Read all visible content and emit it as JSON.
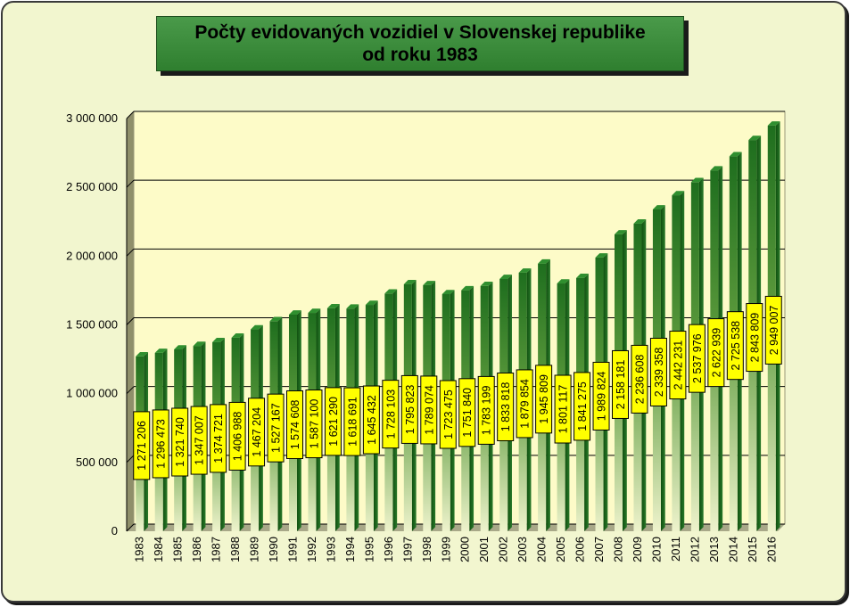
{
  "chart_data": {
    "type": "bar",
    "title_lines": [
      "Počty evidovaných vozidiel v Slovenskej republike",
      "od roku 1983"
    ],
    "categories": [
      "1983",
      "1984",
      "1985",
      "1986",
      "1987",
      "1988",
      "1989",
      "1990",
      "1991",
      "1992",
      "1993",
      "1994",
      "1995",
      "1996",
      "1997",
      "1998",
      "1999",
      "2000",
      "2001",
      "2002",
      "2003",
      "2004",
      "2005",
      "2006",
      "2007",
      "2008",
      "2009",
      "2010",
      "2011",
      "2012",
      "2013",
      "2014",
      "2015",
      "2016"
    ],
    "values": [
      1271206,
      1296473,
      1321740,
      1347007,
      1374721,
      1406988,
      1467204,
      1527167,
      1574608,
      1587100,
      1621290,
      1618691,
      1645432,
      1728103,
      1795823,
      1789074,
      1723475,
      1751840,
      1783199,
      1833818,
      1879854,
      1945809,
      1801117,
      1841275,
      1989824,
      2158181,
      2236608,
      2339358,
      2442231,
      2537976,
      2622939,
      2725538,
      2843809,
      2949007
    ],
    "value_labels": [
      "1 271 206",
      "1 296 473",
      "1 321 740",
      "1 347 007",
      "1 374 721",
      "1 406 988",
      "1 467 204",
      "1 527 167",
      "1 574 608",
      "1 587 100",
      "1 621 290",
      "1 618 691",
      "1 645 432",
      "1 728 103",
      "1 795 823",
      "1 789 074",
      "1 723 475",
      "1 751 840",
      "1 783 199",
      "1 833 818",
      "1 879 854",
      "1 945 809",
      "1 801 117",
      "1 841 275",
      "1 989 824",
      "2 158 181",
      "2 236 608",
      "2 339 358",
      "2 442 231",
      "2 537 976",
      "2 622 939",
      "2 725 538",
      "2 843 809",
      "2 949 007"
    ],
    "y_ticks": [
      0,
      500000,
      1000000,
      1500000,
      2000000,
      2500000,
      3000000
    ],
    "y_tick_labels": [
      "0",
      "500 000",
      "1 000 000",
      "1 500 000",
      "2 000 000",
      "2 500 000",
      "3 000 000"
    ],
    "ylim": [
      0,
      3000000
    ],
    "grid": true,
    "colors": {
      "bar_top": "#1e6e1e",
      "bar_bottom": "#e6efc0",
      "plot_bg": "#fdfbc8",
      "label_bg": "#ffff00",
      "frame_bg": "#f2f6cf"
    }
  }
}
